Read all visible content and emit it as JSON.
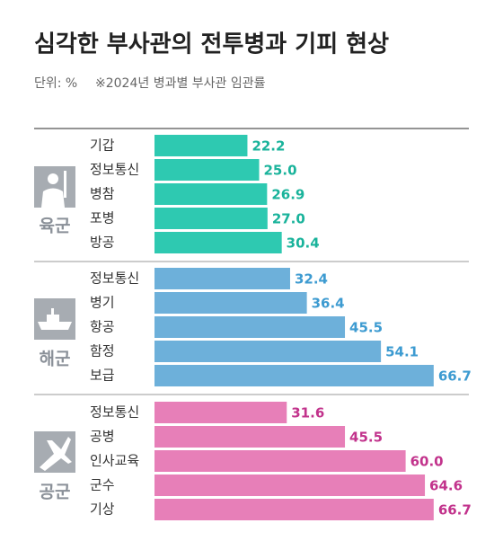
{
  "chart_data": {
    "type": "bar",
    "title": "심각한 부사관의 전투병과 기피 현상",
    "unit": "단위: %",
    "note": "※2024년 병과별 부사관 임관률",
    "groups": [
      {
        "name": "육군",
        "color": "#2ec9b1",
        "label_color": "#19b39b",
        "categories": [
          "기갑",
          "정보통신",
          "병참",
          "포병",
          "방공"
        ],
        "values": [
          22.2,
          25,
          26.9,
          27,
          30.4
        ],
        "value_labels": [
          "22.2",
          "25.0",
          "26.9",
          "27.0",
          "30.4"
        ]
      },
      {
        "name": "해군",
        "color": "#6db0da",
        "label_color": "#3d9bd1",
        "categories": [
          "정보통신",
          "병기",
          "항공",
          "함정",
          "보급"
        ],
        "values": [
          32.4,
          36.4,
          45.5,
          54.1,
          66.7
        ],
        "value_labels": [
          "32.4",
          "36.4",
          "45.5",
          "54.1",
          "66.7"
        ]
      },
      {
        "name": "공군",
        "color": "#e77fb8",
        "label_color": "#c2338c",
        "categories": [
          "정보통신",
          "공병",
          "인사교육",
          "군수",
          "기상"
        ],
        "values": [
          31.6,
          45.5,
          60,
          64.6,
          66.7
        ],
        "value_labels": [
          "31.6",
          "45.5",
          "60.0",
          "64.6",
          "66.7"
        ]
      }
    ]
  }
}
